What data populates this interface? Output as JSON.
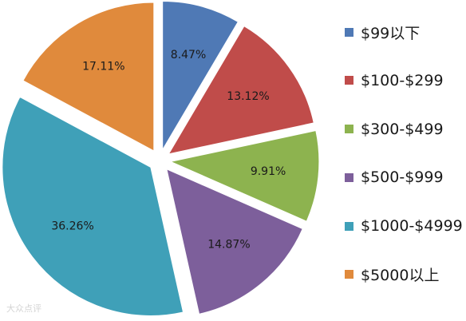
{
  "chart_data": {
    "type": "pie",
    "title": "",
    "legend_position": "right",
    "exploded": true,
    "categories": [
      "$99以下",
      "$100-$299",
      "$300-$499",
      "$500-$999",
      "$1000-$4999",
      "$5000以上"
    ],
    "values": [
      8.47,
      13.12,
      9.91,
      14.87,
      36.26,
      17.11
    ],
    "value_labels": [
      "8.47%",
      "13.12%",
      "9.91%",
      "14.87%",
      "36.26%",
      "17.11%"
    ],
    "colors": [
      "#4F79B5",
      "#C04C4A",
      "#8DB34F",
      "#7D5F9B",
      "#3FA0B8",
      "#E08A3C"
    ]
  },
  "watermark": {
    "text": "大众点评"
  }
}
